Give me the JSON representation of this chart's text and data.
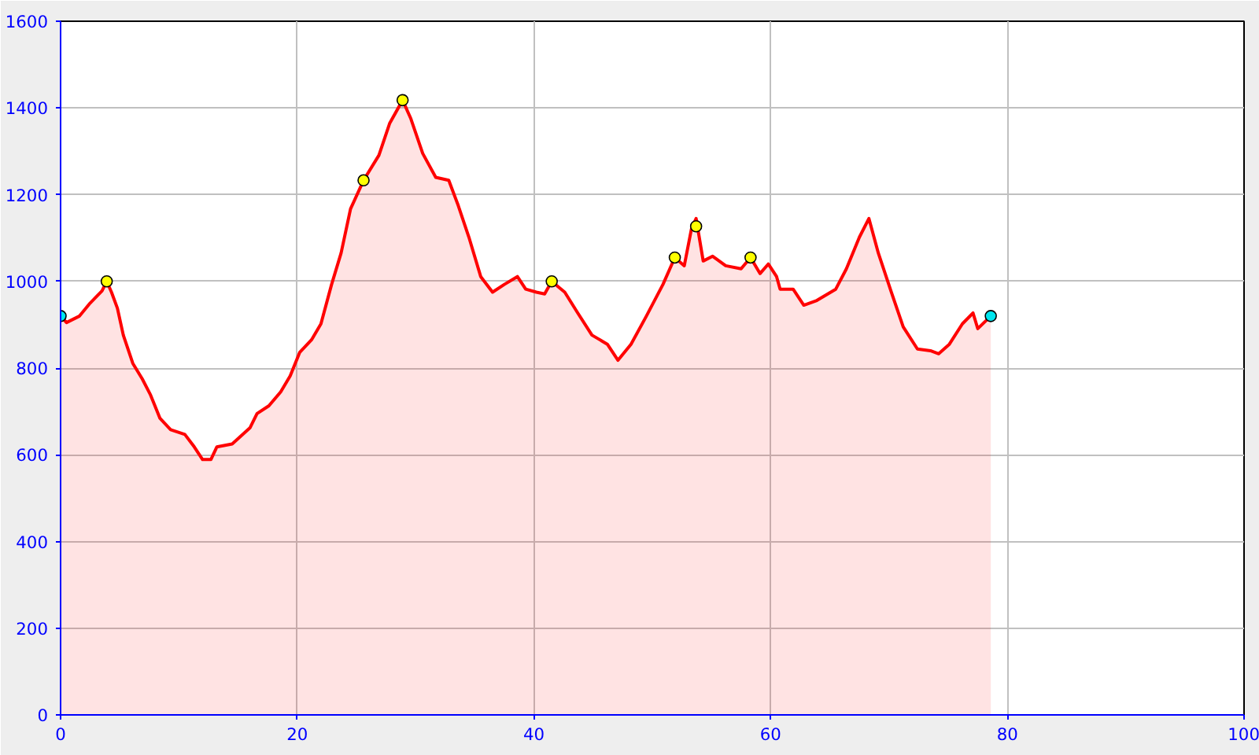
{
  "chart_data": {
    "type": "area",
    "xlim": [
      0,
      100
    ],
    "ylim": [
      0,
      1600
    ],
    "xticks": [
      0,
      20,
      40,
      60,
      80,
      100
    ],
    "yticks": [
      0,
      200,
      400,
      600,
      800,
      1000,
      1200,
      1400,
      1600
    ],
    "grid": true,
    "series": [
      {
        "color": "#ff0000",
        "x": [
          0,
          0.5,
          1.6,
          2.5,
          3.5,
          3.9,
          4.3,
          4.8,
          5.3,
          6.1,
          6.9,
          7.6,
          8.4,
          9.3,
          10.5,
          11.3,
          12,
          12.7,
          13.2,
          14.5,
          16,
          16.6,
          17.6,
          18.6,
          19.4,
          20.2,
          21.2,
          22,
          22.9,
          23.7,
          24.5,
          25.6,
          26.9,
          27.8,
          28.9,
          29.6,
          30.6,
          31.7,
          32.8,
          33.6,
          34.5,
          35.5,
          36.5,
          37.5,
          38.6,
          39.3,
          40.2,
          40.9,
          41.5,
          42.6,
          43.7,
          44.9,
          46.2,
          47.1,
          48.2,
          49.5,
          50.9,
          51.9,
          52.7,
          53.3,
          53.7,
          54.3,
          55.1,
          56.2,
          57.5,
          58.3,
          59.1,
          59.8,
          60.5,
          60.8,
          61.9,
          62.8,
          63.9,
          65.5,
          66.4,
          67.5,
          68.3,
          69.1,
          70.2,
          71.2,
          72.4,
          73.5,
          74.2,
          75.1,
          76.2,
          77.1,
          77.5,
          78.6
        ],
        "values": [
          920,
          905,
          920,
          950,
          978,
          1000,
          975,
          938,
          876,
          811,
          775,
          738,
          684,
          658,
          647,
          618,
          589,
          589,
          618,
          625,
          662,
          695,
          713,
          745,
          782,
          836,
          865,
          902,
          993,
          1065,
          1167,
          1233,
          1291,
          1364,
          1418,
          1375,
          1295,
          1240,
          1233,
          1175,
          1102,
          1011,
          975,
          993,
          1011,
          982,
          975,
          971,
          1000,
          975,
          927,
          876,
          855,
          818,
          855,
          920,
          993,
          1055,
          1036,
          1120,
          1145,
          1047,
          1058,
          1036,
          1029,
          1055,
          1018,
          1040,
          1011,
          982,
          982,
          945,
          956,
          982,
          1029,
          1102,
          1145,
          1065,
          975,
          895,
          844,
          840,
          833,
          855,
          902,
          927,
          891,
          920
        ]
      },
      {
        "type": "scatter",
        "color": "#ffff00",
        "marker": "circle",
        "x": [
          3.9,
          25.6,
          28.9,
          41.5,
          51.9,
          53.7,
          58.3
        ],
        "values": [
          1000,
          1233,
          1418,
          1000,
          1055,
          1127,
          1055
        ]
      },
      {
        "type": "scatter",
        "color": "#00e5ee",
        "marker": "circle",
        "x": [
          0,
          78.6
        ],
        "values": [
          920,
          920
        ]
      }
    ]
  }
}
